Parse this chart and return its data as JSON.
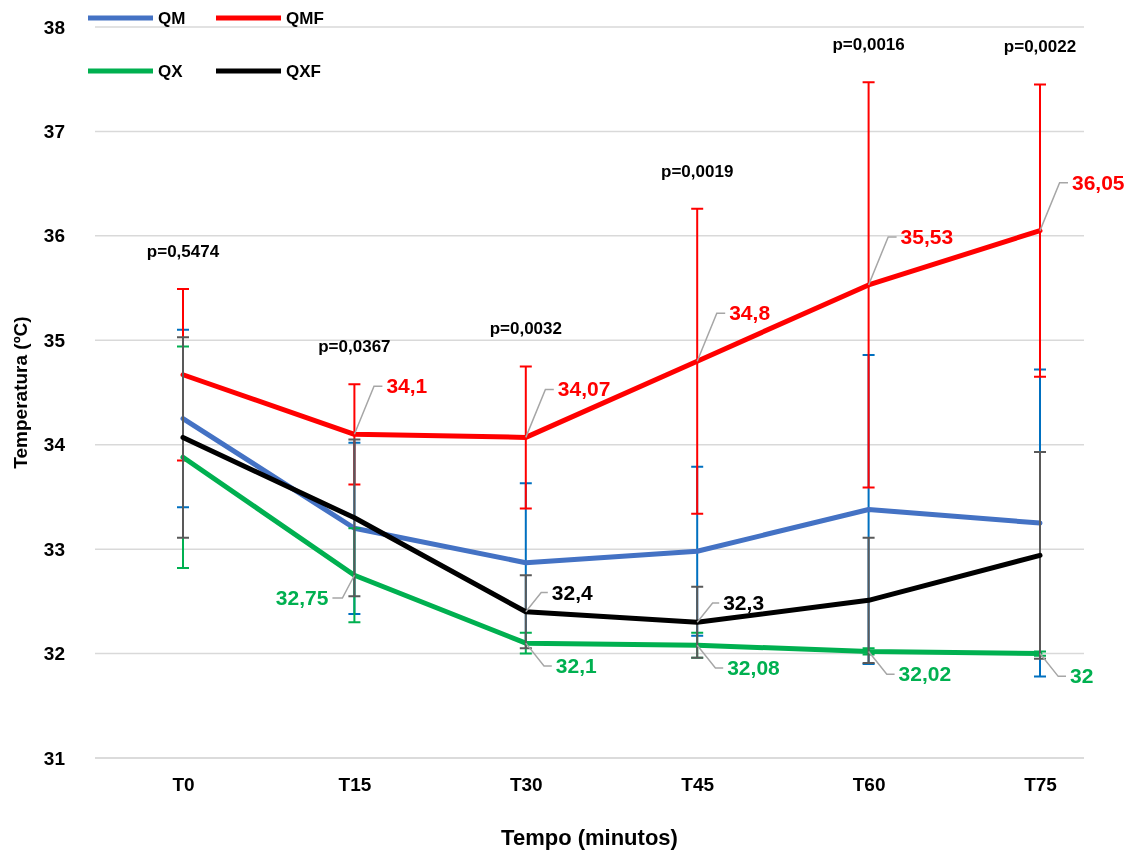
{
  "chart_data": {
    "type": "line",
    "xlabel": "Tempo (minutos)",
    "ylabel": "Temperatura (ºC)",
    "categories": [
      "T0",
      "T15",
      "T30",
      "T45",
      "T60",
      "T75"
    ],
    "ylim": [
      31,
      38
    ],
    "yticks": [
      31,
      32,
      33,
      34,
      35,
      36,
      37,
      38
    ],
    "grid": "y",
    "legend": "top left",
    "series": [
      {
        "name": "QM",
        "color": "#4472c4",
        "values": [
          34.25,
          33.2,
          32.87,
          32.98,
          33.38,
          33.25
        ],
        "errors": [
          0.85,
          0.82,
          0.76,
          0.81,
          1.48,
          1.47
        ]
      },
      {
        "name": "QMF",
        "color": "#ff0000",
        "values": [
          34.67,
          34.1,
          34.07,
          34.8,
          35.53,
          36.05
        ],
        "errors": [
          0.82,
          0.48,
          0.68,
          1.46,
          1.94,
          1.4
        ],
        "value_labels": [
          null,
          "34,1",
          "34,07",
          "34,8",
          "35,53",
          "36,05"
        ]
      },
      {
        "name": "QX",
        "color": "#00b050",
        "values": [
          33.88,
          32.75,
          32.1,
          32.08,
          32.02,
          32
        ],
        "errors": [
          1.06,
          0.45,
          0.1,
          0.12,
          0.03,
          0.02
        ],
        "value_labels": [
          null,
          "32,75",
          "32,1",
          "32,08",
          "32,02",
          "32"
        ]
      },
      {
        "name": "QXF",
        "color": "#000000",
        "values": [
          34.07,
          33.3,
          32.4,
          32.3,
          32.51,
          32.94
        ],
        "errors": [
          0.96,
          0.75,
          0.35,
          0.34,
          0.6,
          0.99
        ],
        "value_labels": [
          null,
          null,
          "32,4",
          "32,3",
          null,
          null
        ]
      }
    ],
    "annotations": [
      "p=0,5474",
      "p=0,0367",
      "p=0,0032",
      "p=0,0019",
      "p=0,0016",
      "p=0,0022"
    ]
  }
}
